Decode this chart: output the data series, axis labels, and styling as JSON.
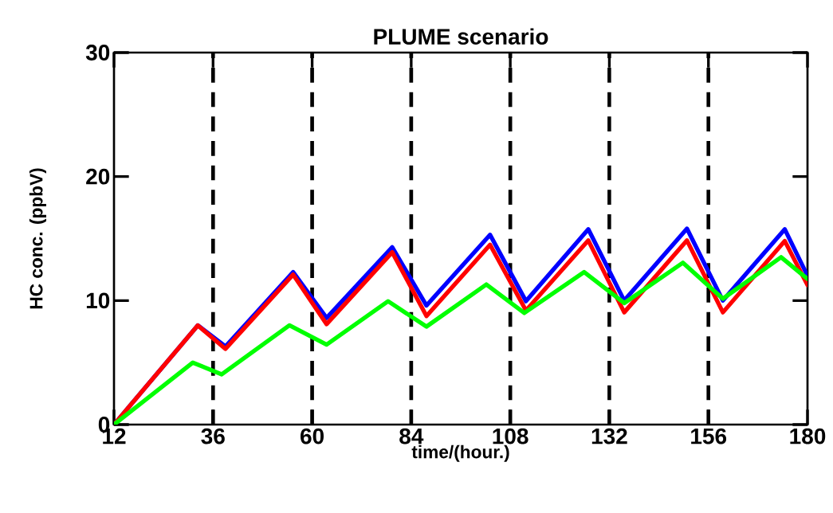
{
  "chart_data": {
    "type": "line",
    "title": "PLUME scenario",
    "xlabel": "time/(hour.)",
    "ylabel": "HC conc. (ppbV)",
    "xlim": [
      12,
      180
    ],
    "ylim": [
      0,
      30
    ],
    "xticks": [
      12,
      36,
      60,
      84,
      108,
      132,
      156,
      180
    ],
    "yticks": [
      0,
      10,
      20,
      30
    ],
    "grid": false,
    "marker": "none",
    "line_style": "solid",
    "ref_lines": [
      {
        "axis": "x",
        "value": 36,
        "color": "#000000",
        "line_style": "dashed"
      },
      {
        "axis": "x",
        "value": 60,
        "color": "#000000",
        "line_style": "dashed"
      },
      {
        "axis": "x",
        "value": 84,
        "color": "#000000",
        "line_style": "dashed"
      },
      {
        "axis": "x",
        "value": 108,
        "color": "#000000",
        "line_style": "dashed"
      },
      {
        "axis": "x",
        "value": 132,
        "color": "#000000",
        "line_style": "dashed"
      },
      {
        "axis": "x",
        "value": 156,
        "color": "#000000",
        "line_style": "dashed"
      }
    ],
    "series": [
      {
        "color": "#0000ff",
        "x": [
          12,
          32.3,
          39,
          55.4,
          63.5,
          79.4,
          87.7,
          103.1,
          111.8,
          126.9,
          135.6,
          150.8,
          159.5,
          174.5,
          180
        ],
        "values": [
          0,
          8.0,
          6.3,
          12.3,
          8.6,
          14.3,
          9.6,
          15.3,
          9.95,
          15.75,
          10.0,
          15.8,
          10.0,
          15.75,
          12.0
        ]
      },
      {
        "color": "#ff0000",
        "x": [
          12,
          32.3,
          39,
          55.4,
          63.5,
          79.4,
          87.7,
          103.1,
          111.8,
          126.9,
          135.6,
          150.8,
          159.5,
          174.5,
          180
        ],
        "values": [
          0,
          8.0,
          6.1,
          12.1,
          8.1,
          13.9,
          8.75,
          14.5,
          9.2,
          14.85,
          9.05,
          14.85,
          9.05,
          14.8,
          11.25
        ]
      },
      {
        "color": "#00ff00",
        "x": [
          12,
          31.1,
          38.1,
          54.5,
          63.5,
          78.4,
          87.7,
          102.2,
          111.4,
          125.9,
          135.6,
          149.8,
          159.5,
          173.6,
          180
        ],
        "values": [
          0,
          5.0,
          4.05,
          8.0,
          6.45,
          9.95,
          7.9,
          11.3,
          9.0,
          12.3,
          9.8,
          13.05,
          10.15,
          13.5,
          11.75
        ]
      }
    ]
  }
}
